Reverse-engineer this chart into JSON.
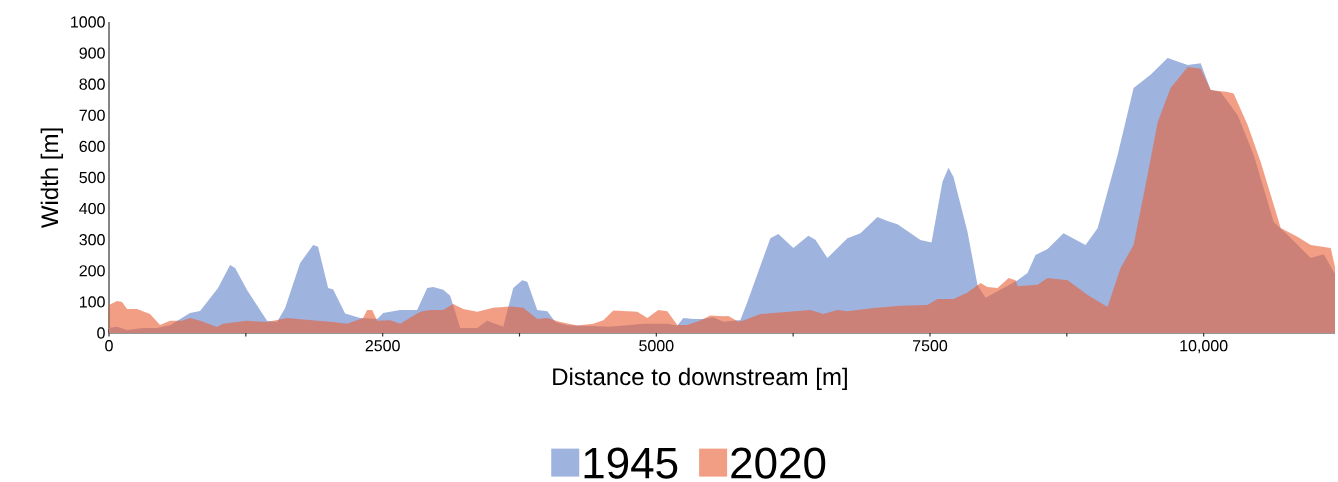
{
  "chart_data": {
    "type": "area",
    "xlabel": "Distance to downstream  [m]",
    "ylabel": "Width  [m]",
    "xlim": [
      0,
      11200
    ],
    "ylim": [
      0,
      1000
    ],
    "xticks": [
      0,
      {
        "value": 1250,
        "label": null
      },
      2500,
      {
        "value": 3750,
        "label": null
      },
      5000,
      {
        "value": 6250,
        "label": null
      },
      7500,
      {
        "value": 8750,
        "label": null
      },
      {
        "value": 10000,
        "label": "10,000"
      }
    ],
    "yticks": [
      0,
      100,
      200,
      300,
      400,
      500,
      600,
      700,
      800,
      900,
      1000
    ],
    "legend": "bottom",
    "series": [
      {
        "name": "1945",
        "color": "#9fb3df",
        "x": [
          0,
          73,
          165,
          311,
          439,
          558,
          740,
          832,
          996,
          1106,
          1152,
          1261,
          1444,
          1536,
          1609,
          1746,
          1865,
          1910,
          2002,
          2048,
          2157,
          2294,
          2450,
          2505,
          2660,
          2815,
          2907,
          2962,
          3053,
          3117,
          3208,
          3364,
          3455,
          3602,
          3693,
          3775,
          3821,
          3912,
          4004,
          4077,
          4186,
          4580,
          4881,
          5100,
          5192,
          5247,
          5338,
          5430,
          5521,
          5612,
          5768,
          5832,
          6042,
          6115,
          6252,
          6389,
          6453,
          6563,
          6746,
          6865,
          7020,
          7111,
          7203,
          7413,
          7514,
          7614,
          7669,
          7715,
          7843,
          7934,
          8007,
          8172,
          8300,
          8391,
          8464,
          8574,
          8720,
          8921,
          9031,
          9214,
          9360,
          9515,
          9671,
          9854,
          9973,
          10064,
          10155,
          10311,
          10457,
          10640,
          10768,
          10978,
          11097,
          11200
        ],
        "values": [
          16,
          20,
          10,
          16,
          16,
          25,
          64,
          71,
          145,
          219,
          209,
          138,
          39,
          35,
          80,
          225,
          283,
          277,
          145,
          140,
          63,
          48,
          45,
          64,
          74,
          74,
          145,
          148,
          139,
          120,
          16,
          16,
          39,
          20,
          145,
          170,
          165,
          74,
          70,
          35,
          25,
          20,
          30,
          30,
          24,
          48,
          45,
          45,
          51,
          36,
          42,
          100,
          305,
          318,
          273,
          313,
          300,
          241,
          305,
          321,
          373,
          360,
          350,
          299,
          291,
          486,
          531,
          502,
          325,
          154,
          113,
          145,
          170,
          193,
          251,
          270,
          321,
          283,
          337,
          572,
          788,
          830,
          884,
          862,
          867,
          781,
          775,
          700,
          572,
          357,
          315,
          241,
          253,
          190
        ]
      },
      {
        "name": "2020",
        "color": "#e95e34",
        "x": [
          0,
          73,
          119,
          165,
          256,
          375,
          466,
          558,
          667,
          740,
          832,
          987,
          1042,
          1261,
          1444,
          1627,
          1901,
          2048,
          2175,
          2322,
          2358,
          2404,
          2450,
          2569,
          2660,
          2843,
          2934,
          3053,
          3145,
          3236,
          3364,
          3510,
          3665,
          3784,
          3912,
          4004,
          4122,
          4278,
          4424,
          4516,
          4607,
          4826,
          4918,
          5018,
          5100,
          5192,
          5283,
          5402,
          5494,
          5612,
          5658,
          5750,
          5795,
          5951,
          6070,
          6408,
          6527,
          6654,
          6746,
          6984,
          7230,
          7477,
          7568,
          7715,
          7843,
          7962,
          8025,
          8117,
          8218,
          8282,
          8300,
          8482,
          8574,
          8757,
          8940,
          9122,
          9241,
          9360,
          9488,
          9580,
          9698,
          9854,
          9973,
          10064,
          10219,
          10274,
          10402,
          10521,
          10704,
          10860,
          10978,
          11161,
          11200
        ],
        "values": [
          90,
          103,
          100,
          77,
          77,
          61,
          26,
          39,
          39,
          48,
          39,
          19,
          30,
          39,
          35,
          48,
          39,
          35,
          30,
          48,
          74,
          74,
          39,
          41,
          30,
          68,
          74,
          74,
          93,
          77,
          68,
          81,
          85,
          81,
          45,
          48,
          35,
          24,
          30,
          41,
          72,
          68,
          48,
          74,
          70,
          26,
          26,
          40,
          56,
          54,
          55,
          36,
          40,
          61,
          64,
          74,
          61,
          74,
          70,
          80,
          88,
          90,
          109,
          109,
          130,
          161,
          148,
          145,
          177,
          170,
          150,
          155,
          177,
          170,
          122,
          84,
          209,
          283,
          508,
          678,
          788,
          855,
          850,
          781,
          775,
          770,
          669,
          550,
          338,
          309,
          283,
          273,
          212
        ]
      }
    ]
  }
}
